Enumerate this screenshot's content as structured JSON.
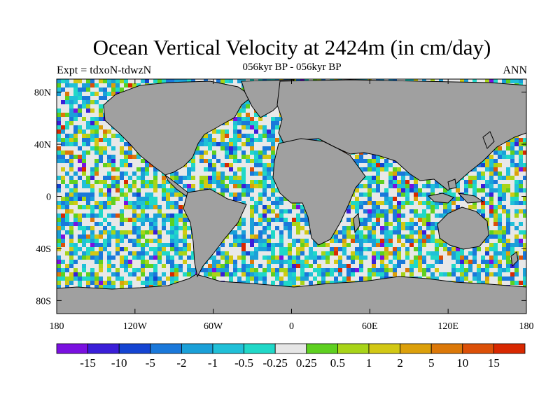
{
  "title": "Ocean Vertical Velocity at 2424m (in cm/day)",
  "subtitle": "056kyr BP - 056kyr BP",
  "experiment": "Expt = tdxoN-tdwzN",
  "season": "ANN",
  "map": {
    "lon_range": [
      -180,
      180
    ],
    "lat_range": [
      -90,
      90
    ],
    "x_ticks": [
      {
        "lon": -180,
        "label": "180"
      },
      {
        "lon": -120,
        "label": "120W"
      },
      {
        "lon": -60,
        "label": "60W"
      },
      {
        "lon": 0,
        "label": "0"
      },
      {
        "lon": 60,
        "label": "60E"
      },
      {
        "lon": 120,
        "label": "120E"
      },
      {
        "lon": 180,
        "label": "180"
      }
    ],
    "y_ticks": [
      {
        "lat": 80,
        "label": "80N"
      },
      {
        "lat": 40,
        "label": "40N"
      },
      {
        "lat": 0,
        "label": "0"
      },
      {
        "lat": -40,
        "label": "40S"
      },
      {
        "lat": -80,
        "label": "80S"
      }
    ],
    "land_color": "#a0a0a0",
    "coast_color": "#000000"
  },
  "colorbar": {
    "colors": [
      "#7a10e0",
      "#3a1ed8",
      "#1444d2",
      "#1a78da",
      "#1aa0d8",
      "#20c0d8",
      "#20d8c8",
      "#e6e6e6",
      "#5ed020",
      "#a8d418",
      "#d2c814",
      "#dca00a",
      "#dc7808",
      "#dc5008",
      "#d82800"
    ],
    "labels": [
      "-15",
      "-10",
      "-5",
      "-2",
      "-1",
      "-0.5",
      "-0.25",
      "0.25",
      "0.5",
      "1",
      "2",
      "5",
      "10",
      "15"
    ]
  }
}
